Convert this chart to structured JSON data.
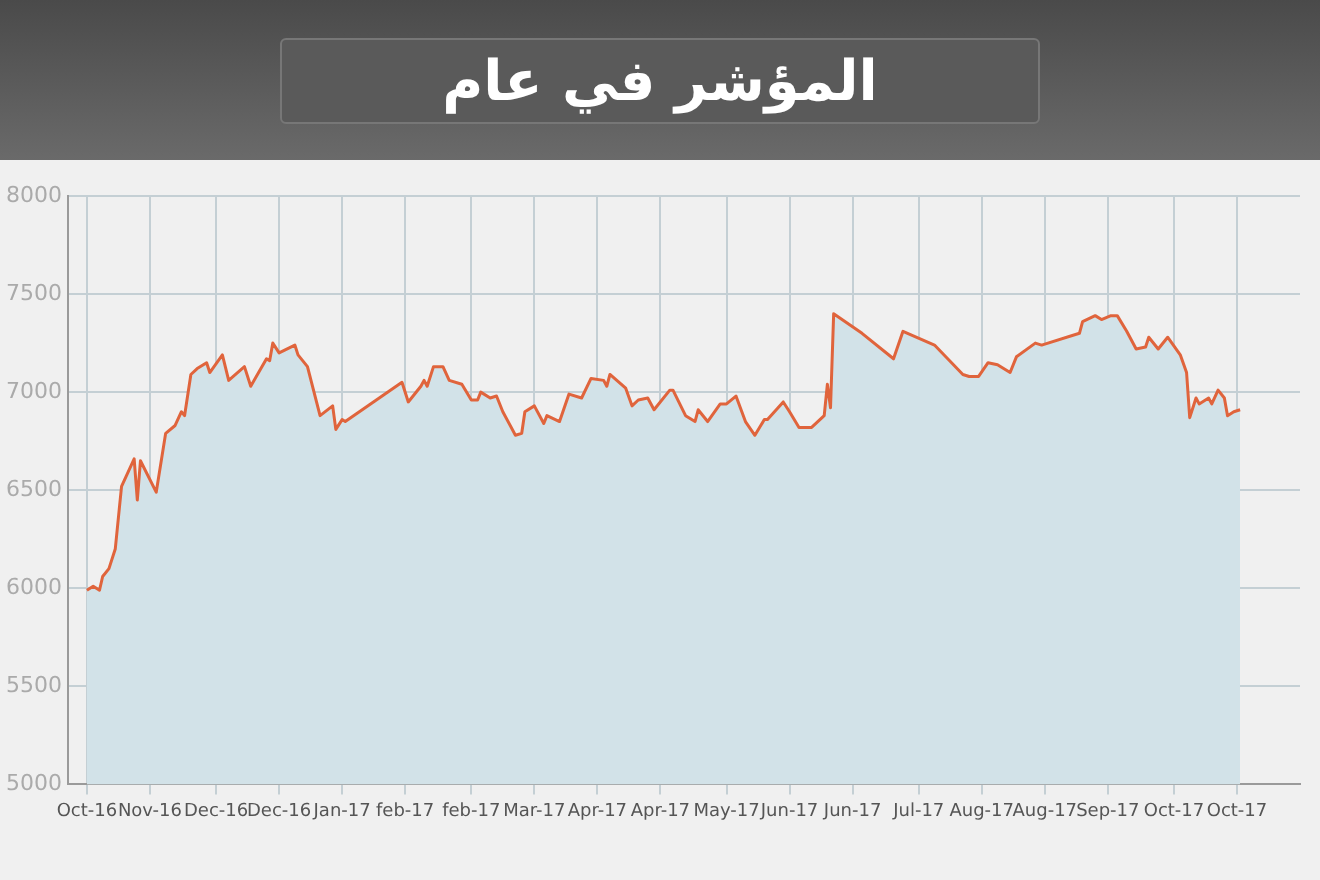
{
  "chart_data": {
    "type": "area",
    "title": "المؤشر في عام",
    "color": "#e0643c",
    "marker": "none",
    "grid": true,
    "xlim": [
      "2016-10-19",
      "2017-11-14"
    ],
    "ylim": [
      5000,
      8000
    ],
    "yticks": [
      5000,
      5500,
      6000,
      6500,
      7000,
      7500,
      8000
    ],
    "xticks": [
      {
        "value": "2016-10-25",
        "label": "Oct-16"
      },
      {
        "value": "2016-11-14",
        "label": "Nov-16"
      },
      {
        "value": "2016-12-05",
        "label": "Dec-16"
      },
      {
        "value": "2016-12-25",
        "label": "Dec-16"
      },
      {
        "value": "2017-01-14",
        "label": "Jan-17"
      },
      {
        "value": "2017-02-03",
        "label": "feb-17"
      },
      {
        "value": "2017-02-24",
        "label": "feb-17"
      },
      {
        "value": "2017-03-16",
        "label": "Mar-17"
      },
      {
        "value": "2017-04-05",
        "label": "Apr-17"
      },
      {
        "value": "2017-04-25",
        "label": "Apr-17"
      },
      {
        "value": "2017-05-16",
        "label": "May-17"
      },
      {
        "value": "2017-06-05",
        "label": "Jun-17"
      },
      {
        "value": "2017-06-25",
        "label": "Jun-17"
      },
      {
        "value": "2017-07-16",
        "label": "Jul-17"
      },
      {
        "value": "2017-08-05",
        "label": "Aug-17"
      },
      {
        "value": "2017-08-25",
        "label": "Aug-17"
      },
      {
        "value": "2017-09-14",
        "label": "Sep-17"
      },
      {
        "value": "2017-10-05",
        "label": "Oct-17"
      },
      {
        "value": "2017-10-25",
        "label": "Oct-17"
      }
    ],
    "x": [
      "2016-10-25",
      "2016-10-27",
      "2016-10-29",
      "2016-10-30",
      "2016-11-01",
      "2016-11-03",
      "2016-11-05",
      "2016-11-09",
      "2016-11-10",
      "2016-11-11",
      "2016-11-16",
      "2016-11-19",
      "2016-11-22",
      "2016-11-24",
      "2016-11-25",
      "2016-11-27",
      "2016-11-29",
      "2016-12-02",
      "2016-12-03",
      "2016-12-07",
      "2016-12-09",
      "2016-12-14",
      "2016-12-16",
      "2016-12-21",
      "2016-12-22",
      "2016-12-23",
      "2016-12-25",
      "2016-12-30",
      "2016-12-31",
      "2017-01-03",
      "2017-01-07",
      "2017-01-11",
      "2017-01-12",
      "2017-01-14",
      "2017-01-15",
      "2017-02-02",
      "2017-02-04",
      "2017-02-08",
      "2017-02-09",
      "2017-02-10",
      "2017-02-12",
      "2017-02-15",
      "2017-02-17",
      "2017-02-21",
      "2017-02-24",
      "2017-02-26",
      "2017-02-27",
      "2017-03-02",
      "2017-03-04",
      "2017-03-06",
      "2017-03-10",
      "2017-03-12",
      "2017-03-13",
      "2017-03-16",
      "2017-03-19",
      "2017-03-20",
      "2017-03-24",
      "2017-03-27",
      "2017-03-31",
      "2017-04-03",
      "2017-04-07",
      "2017-04-08",
      "2017-04-09",
      "2017-04-14",
      "2017-04-16",
      "2017-04-18",
      "2017-04-21",
      "2017-04-23",
      "2017-04-28",
      "2017-04-29",
      "2017-05-03",
      "2017-05-06",
      "2017-05-07",
      "2017-05-10",
      "2017-05-14",
      "2017-05-16",
      "2017-05-19",
      "2017-05-22",
      "2017-05-25",
      "2017-05-28",
      "2017-05-29",
      "2017-06-03",
      "2017-06-05",
      "2017-06-08",
      "2017-06-12",
      "2017-06-16",
      "2017-06-17",
      "2017-06-18",
      "2017-06-19",
      "2017-06-28",
      "2017-07-08",
      "2017-07-11",
      "2017-07-21",
      "2017-07-30",
      "2017-08-01",
      "2017-08-04",
      "2017-08-07",
      "2017-08-10",
      "2017-08-14",
      "2017-08-16",
      "2017-08-22",
      "2017-08-24",
      "2017-09-05",
      "2017-09-06",
      "2017-09-10",
      "2017-09-12",
      "2017-09-15",
      "2017-09-17",
      "2017-09-20",
      "2017-09-23",
      "2017-09-26",
      "2017-09-27",
      "2017-09-30",
      "2017-10-03",
      "2017-10-07",
      "2017-10-09",
      "2017-10-10",
      "2017-10-12",
      "2017-10-13",
      "2017-10-16",
      "2017-10-17",
      "2017-10-19",
      "2017-10-21",
      "2017-10-22",
      "2017-10-24",
      "2017-10-26"
    ],
    "values": [
      5990,
      6010,
      5990,
      6060,
      6100,
      6200,
      6520,
      6660,
      6450,
      6650,
      6490,
      6790,
      6830,
      6900,
      6880,
      7090,
      7120,
      7150,
      7100,
      7190,
      7060,
      7130,
      7030,
      7170,
      7160,
      7250,
      7200,
      7240,
      7190,
      7130,
      6880,
      6930,
      6810,
      6860,
      6850,
      7050,
      6950,
      7030,
      7060,
      7030,
      7130,
      7130,
      7060,
      7040,
      6960,
      6960,
      7000,
      6970,
      6980,
      6900,
      6780,
      6790,
      6900,
      6930,
      6840,
      6880,
      6850,
      6990,
      6970,
      7070,
      7060,
      7030,
      7090,
      7020,
      6930,
      6960,
      6970,
      6910,
      7010,
      7010,
      6880,
      6850,
      6910,
      6850,
      6940,
      6940,
      6980,
      6850,
      6780,
      6860,
      6860,
      6950,
      6900,
      6820,
      6820,
      6880,
      7040,
      6920,
      7400,
      7300,
      7170,
      7310,
      7240,
      7090,
      7080,
      7080,
      7150,
      7140,
      7100,
      7180,
      7250,
      7240,
      7300,
      7360,
      7390,
      7370,
      7390,
      7390,
      7310,
      7220,
      7230,
      7280,
      7220,
      7280,
      7190,
      7100,
      6870,
      6970,
      6940,
      6970,
      6940,
      7010,
      6970,
      6880,
      6900,
      6910
    ]
  }
}
